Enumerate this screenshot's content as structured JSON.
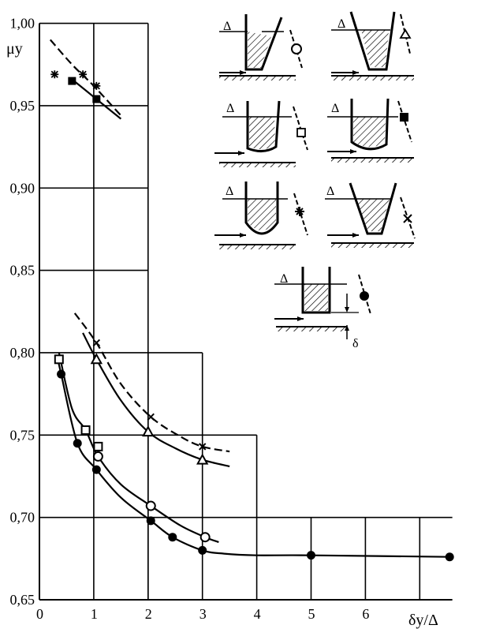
{
  "chart_data": {
    "type": "scatter",
    "title": "",
    "xlabel": "δy/Δ",
    "ylabel": "μy",
    "xlim": [
      0,
      7.6
    ],
    "ylim": [
      0.65,
      1.0
    ],
    "x_ticks": [
      "0",
      "1",
      "2",
      "3",
      "4",
      "5",
      "6"
    ],
    "y_ticks": [
      "0,65",
      "0,70",
      "0,75",
      "0,80",
      "0,85",
      "0,90",
      "0,95",
      "1,00"
    ],
    "grid": "stepped",
    "series": [
      {
        "marker": "asterisk",
        "line": "dashed",
        "values": [
          [
            0.28,
            0.969
          ],
          [
            0.8,
            0.969
          ],
          [
            1.05,
            0.962
          ]
        ],
        "fit": [
          [
            0.2,
            0.99
          ],
          [
            0.6,
            0.975
          ],
          [
            1.0,
            0.962
          ],
          [
            1.5,
            0.944
          ]
        ]
      },
      {
        "marker": "filled-square",
        "line": "solid",
        "values": [
          [
            0.6,
            0.965
          ],
          [
            1.05,
            0.954
          ]
        ],
        "fit": [
          [
            0.6,
            0.966
          ],
          [
            1.05,
            0.954
          ],
          [
            1.5,
            0.942
          ]
        ]
      },
      {
        "marker": "x",
        "line": "dashed",
        "values": [
          [
            1.05,
            0.806
          ],
          [
            2.05,
            0.761
          ],
          [
            3.0,
            0.743
          ]
        ],
        "fit": [
          [
            0.65,
            0.824
          ],
          [
            1.05,
            0.806
          ],
          [
            1.5,
            0.781
          ],
          [
            2.05,
            0.761
          ],
          [
            2.6,
            0.749
          ],
          [
            3.0,
            0.743
          ],
          [
            3.5,
            0.74
          ]
        ]
      },
      {
        "marker": "open-triangle",
        "line": "solid",
        "values": [
          [
            1.05,
            0.796
          ],
          [
            2.0,
            0.752
          ],
          [
            3.0,
            0.735
          ]
        ],
        "fit": [
          [
            0.8,
            0.812
          ],
          [
            1.05,
            0.796
          ],
          [
            1.5,
            0.771
          ],
          [
            2.0,
            0.752
          ],
          [
            2.5,
            0.742
          ],
          [
            3.0,
            0.735
          ],
          [
            3.5,
            0.731
          ]
        ]
      },
      {
        "marker": "open-square",
        "line": "solid",
        "values": [
          [
            0.36,
            0.796
          ],
          [
            0.85,
            0.753
          ],
          [
            1.08,
            0.743
          ]
        ],
        "fit": []
      },
      {
        "marker": "open-circle",
        "line": "solid",
        "values": [
          [
            1.08,
            0.737
          ],
          [
            2.05,
            0.707
          ],
          [
            3.05,
            0.688
          ]
        ],
        "fit": [
          [
            0.36,
            0.8
          ],
          [
            0.6,
            0.766
          ],
          [
            0.85,
            0.753
          ],
          [
            1.08,
            0.737
          ],
          [
            1.5,
            0.72
          ],
          [
            2.05,
            0.707
          ],
          [
            2.6,
            0.695
          ],
          [
            3.05,
            0.688
          ],
          [
            3.3,
            0.685
          ]
        ]
      },
      {
        "marker": "filled-circle",
        "line": "solid",
        "values": [
          [
            0.4,
            0.787
          ],
          [
            0.7,
            0.745
          ],
          [
            1.05,
            0.729
          ],
          [
            2.05,
            0.698
          ],
          [
            2.45,
            0.688
          ],
          [
            3.0,
            0.68
          ],
          [
            5.0,
            0.677
          ],
          [
            7.55,
            0.676
          ]
        ],
        "fit": [
          [
            0.34,
            0.796
          ],
          [
            0.4,
            0.787
          ],
          [
            0.7,
            0.745
          ],
          [
            1.05,
            0.729
          ],
          [
            1.5,
            0.712
          ],
          [
            2.05,
            0.698
          ],
          [
            2.45,
            0.688
          ],
          [
            3.0,
            0.68
          ],
          [
            3.4,
            0.678
          ],
          [
            4.0,
            0.677
          ],
          [
            5.0,
            0.677
          ],
          [
            7.55,
            0.676
          ]
        ]
      }
    ],
    "inset_labels": [
      "Δ",
      "Δ",
      "Δ",
      "Δ",
      "Δ",
      "Δ",
      "Δ",
      "δ"
    ]
  }
}
